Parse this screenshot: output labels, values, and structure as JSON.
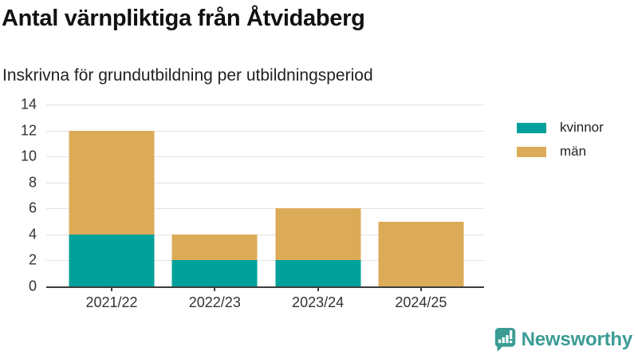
{
  "header": {
    "title": "Antal värnpliktiga från Åtvidaberg",
    "subtitle": "Inskrivna för grundutbildning per utbildningsperiod"
  },
  "chart_data": {
    "type": "bar",
    "stacked": true,
    "title": "Antal värnpliktiga från Åtvidaberg",
    "subtitle": "Inskrivna för grundutbildning per utbildningsperiod",
    "categories": [
      "2021/22",
      "2022/23",
      "2023/24",
      "2024/25"
    ],
    "series": [
      {
        "name": "kvinnor",
        "color": "#00a19a",
        "values": [
          4,
          2,
          2,
          0
        ]
      },
      {
        "name": "män",
        "color": "#dcab58",
        "values": [
          8,
          2,
          4,
          5
        ]
      }
    ],
    "totals": [
      12,
      4,
      6,
      5
    ],
    "xlabel": "",
    "ylabel": "",
    "ylim": [
      0,
      14
    ],
    "yticks": [
      0,
      2,
      4,
      6,
      8,
      10,
      12,
      14
    ],
    "grid": true,
    "legend_position": "right"
  },
  "colors": {
    "kvinnor": "#00a19a",
    "man": "#dcab58",
    "gridline": "#e3e3e3",
    "axis": "#3d3d3d",
    "text": "#333333",
    "brand": "#3b9c95"
  },
  "footer": {
    "brand": "Newsworthy"
  }
}
